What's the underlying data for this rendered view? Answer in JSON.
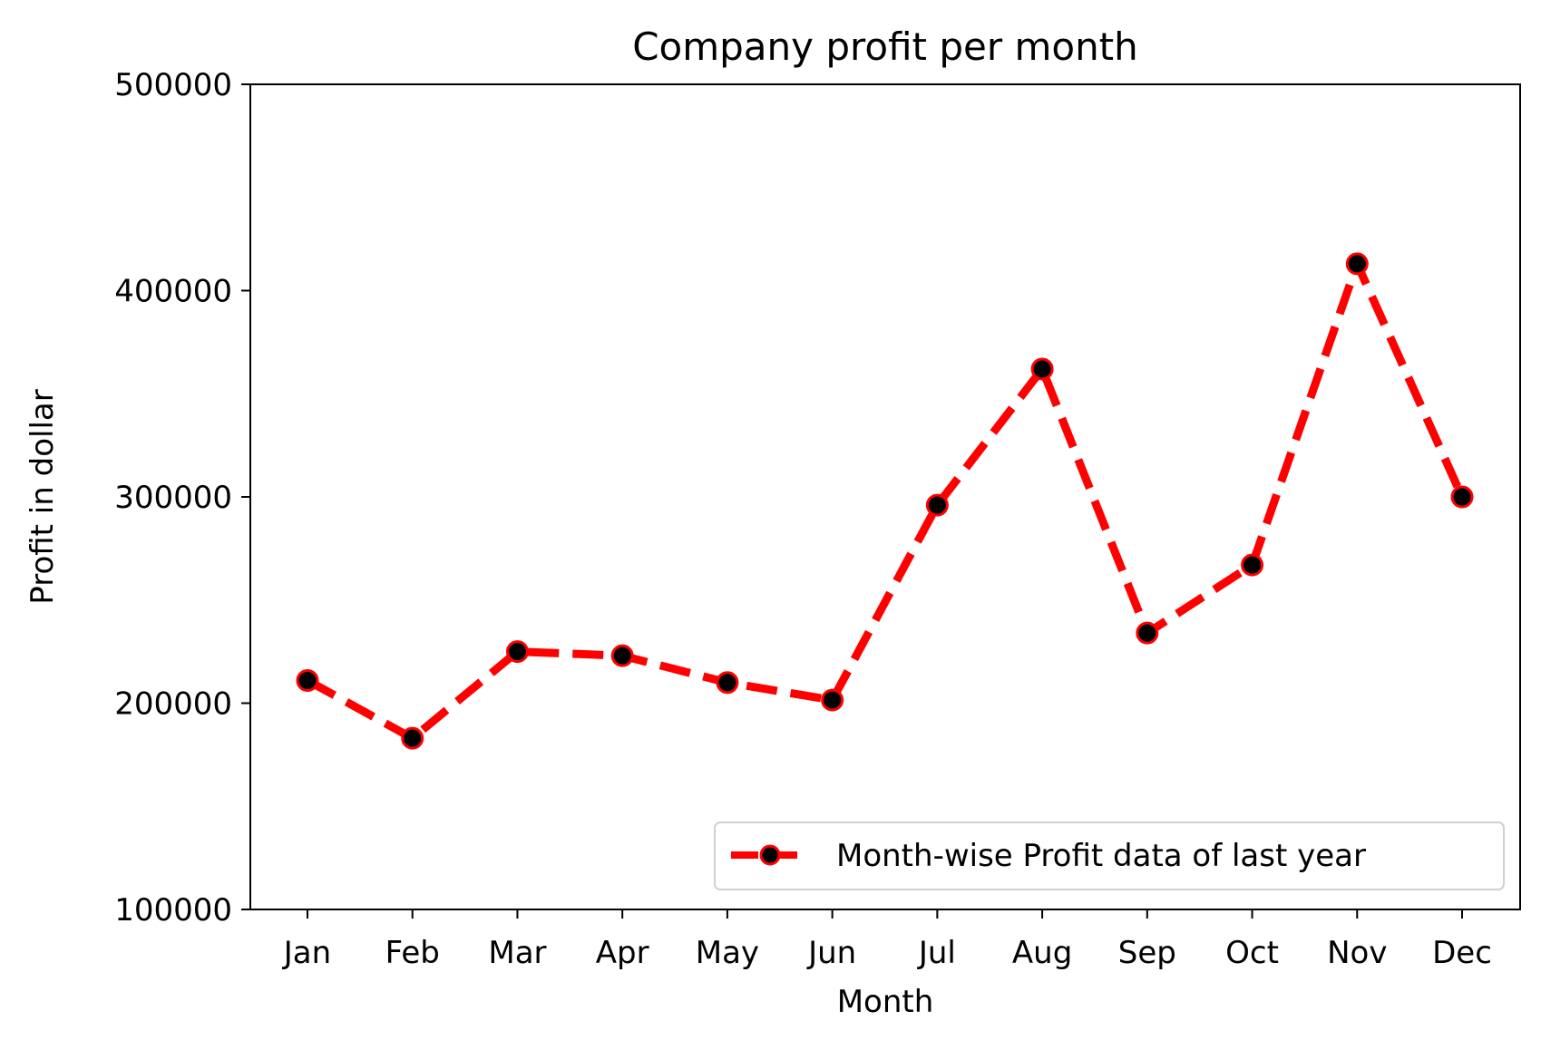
{
  "chart_data": {
    "type": "line",
    "title": "Company profit per month",
    "xlabel": "Month",
    "ylabel": "Profit in dollar",
    "categories": [
      "Jan",
      "Feb",
      "Mar",
      "Apr",
      "May",
      "Jun",
      "Jul",
      "Aug",
      "Sep",
      "Oct",
      "Nov",
      "Dec"
    ],
    "y_ticks": [
      "100000",
      "200000",
      "300000",
      "400000",
      "500000"
    ],
    "ylim": [
      100000,
      500000
    ],
    "grid": false,
    "legend_position": "lower-right",
    "series": [
      {
        "name": "Month-wise Profit data of last year",
        "values": [
          211000,
          183000,
          225000,
          223000,
          210000,
          201500,
          296000,
          362000,
          234000,
          267000,
          413000,
          300000
        ],
        "line_color": "#ff0000",
        "line_style": "dashed",
        "marker_color": "#000000",
        "marker_edge_color": "#ff0000"
      }
    ]
  }
}
